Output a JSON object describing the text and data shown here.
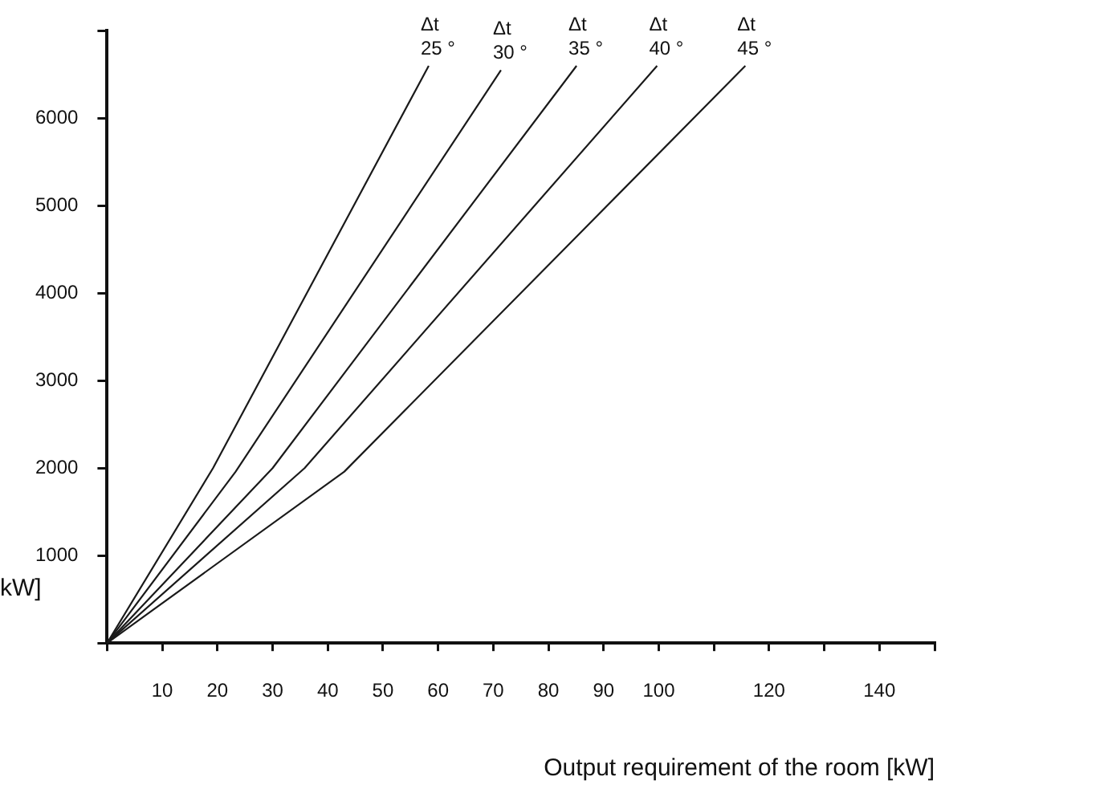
{
  "chart_data": {
    "type": "line",
    "xlabel": "Output requirement of the room [kW]",
    "ylabel": "kW]",
    "xlim": [
      0,
      150
    ],
    "ylim": [
      0,
      7000
    ],
    "xticks": [
      {
        "value": 0,
        "label": null
      },
      10,
      20,
      30,
      40,
      50,
      60,
      70,
      80,
      90,
      100,
      {
        "value": 110,
        "label": null
      },
      120,
      {
        "value": 130,
        "label": null
      },
      140,
      {
        "value": 150,
        "label": null
      }
    ],
    "yticks": [
      {
        "value": 0,
        "label": null
      },
      1000,
      2000,
      3000,
      4000,
      5000,
      6000,
      {
        "value": 7000,
        "label": null
      }
    ],
    "grid": false,
    "legend": false,
    "marker": "none",
    "line_style": "solid",
    "series": [
      {
        "name": "Δt 25 °",
        "color": "#1a1a1a",
        "x": [
          0,
          19.2,
          58.3
        ],
        "values": [
          0,
          2000,
          6600
        ]
      },
      {
        "name": "Δt 30 °",
        "color": "#1a1a1a",
        "x": [
          0,
          23.3,
          71.4
        ],
        "values": [
          0,
          1960,
          6550
        ]
      },
      {
        "name": "Δt 35 °",
        "color": "#1a1a1a",
        "x": [
          0,
          30,
          85.1
        ],
        "values": [
          0,
          2000,
          6600
        ]
      },
      {
        "name": "Δt 40 °",
        "color": "#1a1a1a",
        "x": [
          0,
          35.8,
          99.7
        ],
        "values": [
          0,
          2000,
          6600
        ]
      },
      {
        "name": "Δt 45 °",
        "color": "#1a1a1a",
        "x": [
          0,
          43,
          115.7
        ],
        "values": [
          0,
          1960,
          6600
        ]
      }
    ]
  }
}
